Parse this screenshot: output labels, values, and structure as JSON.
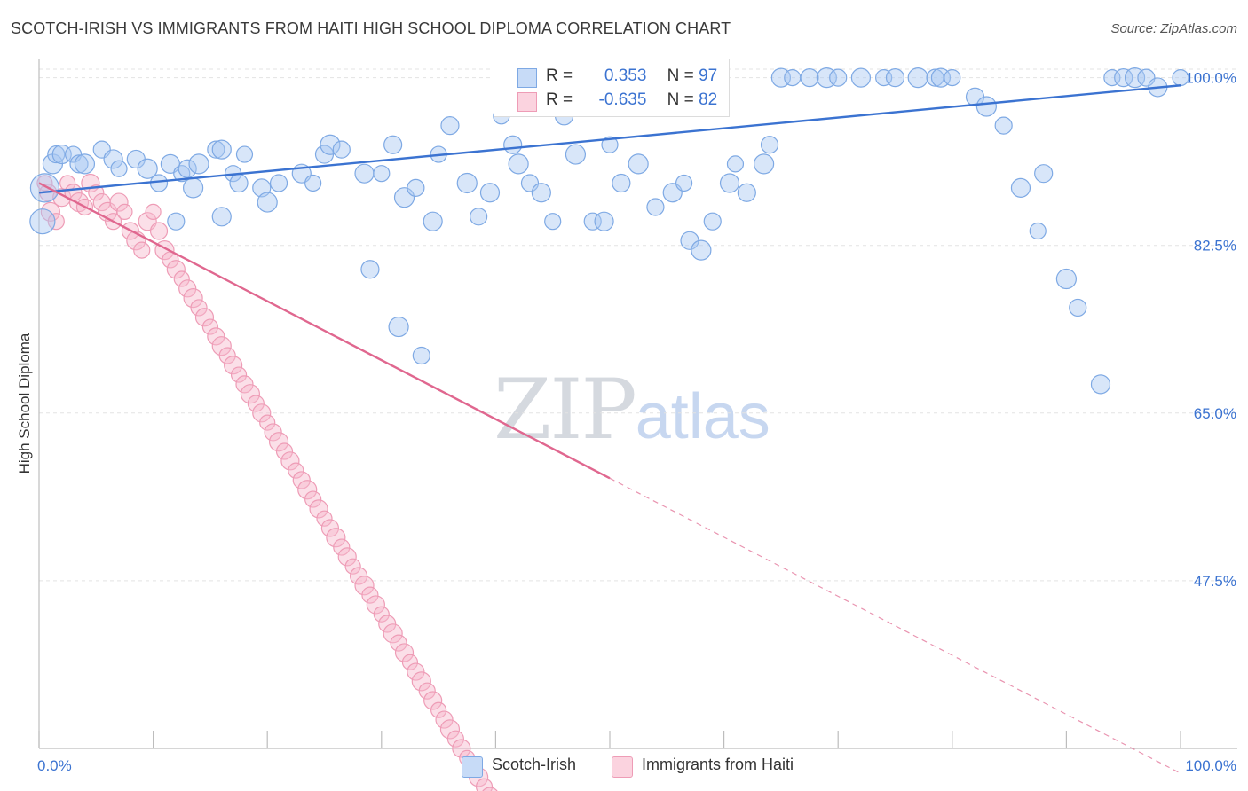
{
  "header": {
    "title": "SCOTCH-IRISH VS IMMIGRANTS FROM HAITI HIGH SCHOOL DIPLOMA CORRELATION CHART",
    "source": "Source: ZipAtlas.com"
  },
  "watermark": {
    "zip": "ZIP",
    "atlas": "atlas"
  },
  "legend": {
    "r_label": "R =",
    "n_label": "N =",
    "rows": [
      {
        "r": "0.353",
        "n": "97",
        "color": "#a9c7f2"
      },
      {
        "r": "-0.635",
        "n": "82",
        "color": "#f7b8cb"
      }
    ]
  },
  "bottom_legend": [
    {
      "label": "Scotch-Irish",
      "color": "#a9c7f2"
    },
    {
      "label": "Immigrants from Haiti",
      "color": "#f7b8cb"
    }
  ],
  "chart_data": {
    "type": "scatter",
    "title": "SCOTCH-IRISH VS IMMIGRANTS FROM HAITI HIGH SCHOOL DIPLOMA CORRELATION CHART",
    "xlabel": "",
    "ylabel": "High School Diploma",
    "xlim": [
      0,
      100
    ],
    "ylim": [
      30,
      102
    ],
    "x_tick_labels": [
      "0.0%",
      "100.0%"
    ],
    "y_ticks": [
      100.0,
      82.5,
      65.0,
      47.5
    ],
    "y_tick_labels": [
      "100.0%",
      "82.5%",
      "65.0%",
      "47.5%"
    ],
    "grid": true,
    "legend_position": "top-center",
    "colors": {
      "blue": "#3b73d1",
      "pink": "#e0678f",
      "blue_fill": "#a9c7f2",
      "pink_fill": "#f7b8cb"
    },
    "series": [
      {
        "name": "Scotch-Irish",
        "R": 0.353,
        "N": 97,
        "trend": {
          "x0": 0,
          "y0": 88.0,
          "x1": 100,
          "y1": 99.2
        },
        "points": [
          [
            1.2,
            91
          ],
          [
            1.5,
            92
          ],
          [
            2.0,
            92
          ],
          [
            3.0,
            92
          ],
          [
            3.5,
            91
          ],
          [
            4.0,
            91
          ],
          [
            5.5,
            92.5
          ],
          [
            6.5,
            91.5
          ],
          [
            7.0,
            90.5
          ],
          [
            8.5,
            91.5
          ],
          [
            9.5,
            90.5
          ],
          [
            10.5,
            89
          ],
          [
            11.5,
            91
          ],
          [
            12.5,
            90
          ],
          [
            13.0,
            90.5
          ],
          [
            14.0,
            91
          ],
          [
            15.5,
            92.5
          ],
          [
            16.0,
            92.5
          ],
          [
            17.0,
            90
          ],
          [
            17.5,
            89
          ],
          [
            13.5,
            88.5
          ],
          [
            12.0,
            85
          ],
          [
            16.0,
            85.5
          ],
          [
            18.0,
            92
          ],
          [
            19.5,
            88.5
          ],
          [
            20.0,
            87
          ],
          [
            21.0,
            89
          ],
          [
            23.0,
            90
          ],
          [
            24.0,
            89
          ],
          [
            25.0,
            92
          ],
          [
            25.5,
            93
          ],
          [
            26.5,
            92.5
          ],
          [
            28.5,
            90
          ],
          [
            30.0,
            90
          ],
          [
            31.0,
            93
          ],
          [
            32.0,
            87.5
          ],
          [
            33.0,
            88.5
          ],
          [
            34.5,
            85
          ],
          [
            35.0,
            92
          ],
          [
            36.0,
            95
          ],
          [
            37.5,
            89
          ],
          [
            38.5,
            85.5
          ],
          [
            39.5,
            88
          ],
          [
            40.5,
            96
          ],
          [
            41.5,
            93
          ],
          [
            42.0,
            91
          ],
          [
            43.0,
            89
          ],
          [
            44.0,
            88
          ],
          [
            45.0,
            85
          ],
          [
            46.0,
            96
          ],
          [
            47.0,
            92
          ],
          [
            48.5,
            85
          ],
          [
            49.5,
            85
          ],
          [
            50.0,
            93
          ],
          [
            51.0,
            89
          ],
          [
            52.5,
            91
          ],
          [
            54.0,
            86.5
          ],
          [
            55.5,
            88
          ],
          [
            56.5,
            89
          ],
          [
            57.0,
            83
          ],
          [
            58.0,
            82
          ],
          [
            59.0,
            85
          ],
          [
            60.5,
            89
          ],
          [
            61.0,
            91
          ],
          [
            62.0,
            88
          ],
          [
            63.5,
            91
          ],
          [
            64.0,
            93
          ],
          [
            65.0,
            100
          ],
          [
            66.0,
            100
          ],
          [
            67.5,
            100
          ],
          [
            69.0,
            100
          ],
          [
            70.0,
            100
          ],
          [
            72.0,
            100
          ],
          [
            74.0,
            100
          ],
          [
            75.0,
            100
          ],
          [
            77.0,
            100
          ],
          [
            78.5,
            100
          ],
          [
            79.0,
            100
          ],
          [
            80.0,
            100
          ],
          [
            82.0,
            98
          ],
          [
            83.0,
            97
          ],
          [
            84.5,
            95
          ],
          [
            86.0,
            88.5
          ],
          [
            87.5,
            84
          ],
          [
            88.0,
            90
          ],
          [
            90.0,
            79
          ],
          [
            91.0,
            76
          ],
          [
            93.0,
            68
          ],
          [
            94.0,
            100
          ],
          [
            95.0,
            100
          ],
          [
            96.0,
            100
          ],
          [
            97.0,
            100
          ],
          [
            98.0,
            99
          ],
          [
            100.0,
            100
          ],
          [
            29.0,
            80
          ],
          [
            31.5,
            74
          ],
          [
            33.5,
            71
          ]
        ]
      },
      {
        "name": "Immigrants from Haiti",
        "R": -0.635,
        "N": 82,
        "trend": {
          "x0": 0,
          "y0": 89.0,
          "x1": 50,
          "y1": 58.2,
          "dash_x1": 100,
          "dash_y1": 27.4
        },
        "points": [
          [
            0.5,
            89
          ],
          [
            0.8,
            88
          ],
          [
            1.0,
            86
          ],
          [
            1.5,
            85
          ],
          [
            2.0,
            87.5
          ],
          [
            2.5,
            89
          ],
          [
            3.0,
            88
          ],
          [
            3.5,
            87
          ],
          [
            4.0,
            86.5
          ],
          [
            4.5,
            89
          ],
          [
            5.0,
            88
          ],
          [
            5.5,
            87
          ],
          [
            6.0,
            86
          ],
          [
            6.5,
            85
          ],
          [
            7.0,
            87
          ],
          [
            7.5,
            86
          ],
          [
            8.0,
            84
          ],
          [
            8.5,
            83
          ],
          [
            9.0,
            82
          ],
          [
            9.5,
            85
          ],
          [
            10.0,
            86
          ],
          [
            10.5,
            84
          ],
          [
            11.0,
            82
          ],
          [
            11.5,
            81
          ],
          [
            12.0,
            80
          ],
          [
            12.5,
            79
          ],
          [
            13.0,
            78
          ],
          [
            13.5,
            77
          ],
          [
            14.0,
            76
          ],
          [
            14.5,
            75
          ],
          [
            15.0,
            74
          ],
          [
            15.5,
            73
          ],
          [
            16.0,
            72
          ],
          [
            16.5,
            71
          ],
          [
            17.0,
            70
          ],
          [
            17.5,
            69
          ],
          [
            18.0,
            68
          ],
          [
            18.5,
            67
          ],
          [
            19.0,
            66
          ],
          [
            19.5,
            65
          ],
          [
            20.0,
            64
          ],
          [
            20.5,
            63
          ],
          [
            21.0,
            62
          ],
          [
            21.5,
            61
          ],
          [
            22.0,
            60
          ],
          [
            22.5,
            59
          ],
          [
            23.0,
            58
          ],
          [
            23.5,
            57
          ],
          [
            24.0,
            56
          ],
          [
            24.5,
            55
          ],
          [
            25.0,
            54
          ],
          [
            25.5,
            53
          ],
          [
            26.0,
            52
          ],
          [
            26.5,
            51
          ],
          [
            27.0,
            50
          ],
          [
            27.5,
            49
          ],
          [
            28.0,
            48
          ],
          [
            28.5,
            47
          ],
          [
            29.0,
            46
          ],
          [
            29.5,
            45
          ],
          [
            30.0,
            44
          ],
          [
            30.5,
            43
          ],
          [
            31.0,
            42
          ],
          [
            31.5,
            41
          ],
          [
            32.0,
            40
          ],
          [
            32.5,
            39
          ],
          [
            33.0,
            38
          ],
          [
            33.5,
            37
          ],
          [
            34.0,
            36
          ],
          [
            34.5,
            35
          ],
          [
            35.0,
            34
          ],
          [
            35.5,
            33
          ],
          [
            36.0,
            32
          ],
          [
            36.5,
            31
          ],
          [
            37.0,
            30
          ],
          [
            37.5,
            29
          ],
          [
            38.0,
            28
          ],
          [
            38.5,
            27
          ],
          [
            39.0,
            26
          ],
          [
            39.5,
            25
          ],
          [
            40.0,
            24
          ],
          [
            40.5,
            23
          ]
        ]
      }
    ]
  }
}
